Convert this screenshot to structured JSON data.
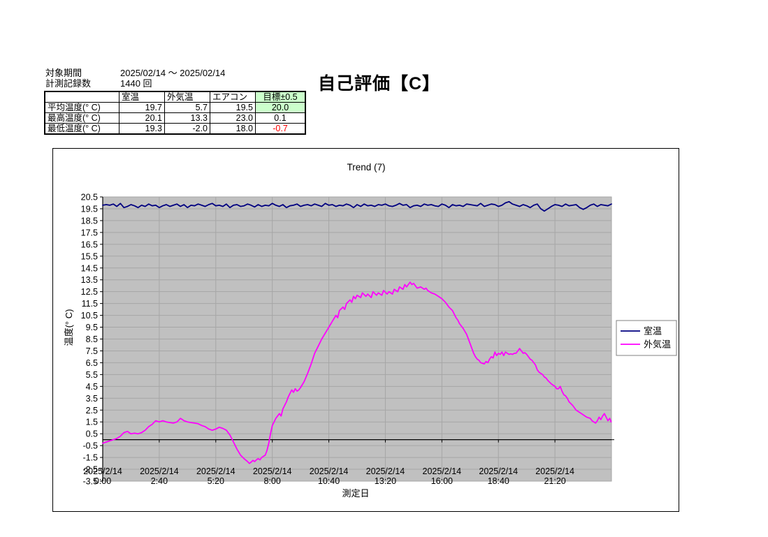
{
  "header": {
    "period_label": "対象期間",
    "period_value": "2025/02/14 ～ 2025/02/14",
    "count_label": "計測記録数",
    "count_value": "1440 回",
    "evaluation_title": "自己評価【C】"
  },
  "table": {
    "col_headers": [
      "",
      "室温",
      "外気温",
      "エアコン",
      "目標±0.5"
    ],
    "rows": [
      {
        "label": "平均温度(° C)",
        "values": [
          "19.7",
          "5.7",
          "19.5",
          "20.0"
        ]
      },
      {
        "label": "最高温度(° C)",
        "values": [
          "20.1",
          "13.3",
          "23.0",
          "0.1"
        ]
      },
      {
        "label": "最低温度(° C)",
        "values": [
          "19.3",
          "-2.0",
          "18.0",
          "-0.7"
        ]
      }
    ],
    "highlight_green": "#ccffcc",
    "negative_red": "#ff0000"
  },
  "chart_data": {
    "type": "line",
    "title": "Trend (7)",
    "xlabel": "測定日",
    "ylabel": "温度(° C)",
    "ylim": [
      -3.5,
      20.5
    ],
    "ytick_step": 1.0,
    "ytick_labels": [
      "20.5",
      "19.5",
      "18.5",
      "17.5",
      "16.5",
      "15.5",
      "14.5",
      "13.5",
      "12.5",
      "11.5",
      "10.5",
      "9.5",
      "8.5",
      "7.5",
      "6.5",
      "5.5",
      "4.5",
      "3.5",
      "2.5",
      "1.5",
      "0.5",
      "-0.5",
      "-1.5",
      "-2.5",
      "-3.5"
    ],
    "xlim_minutes": [
      0,
      1440
    ],
    "x_ticks": [
      {
        "minute": 0,
        "date": "2025/2/14",
        "time": "0:00"
      },
      {
        "minute": 160,
        "date": "2025/2/14",
        "time": "2:40"
      },
      {
        "minute": 320,
        "date": "2025/2/14",
        "time": "5:20"
      },
      {
        "minute": 480,
        "date": "2025/2/14",
        "time": "8:00"
      },
      {
        "minute": 640,
        "date": "2025/2/14",
        "time": "10:40"
      },
      {
        "minute": 800,
        "date": "2025/2/14",
        "time": "13:20"
      },
      {
        "minute": 960,
        "date": "2025/2/14",
        "time": "16:00"
      },
      {
        "minute": 1120,
        "date": "2025/2/14",
        "time": "18:40"
      },
      {
        "minute": 1280,
        "date": "2025/2/14",
        "time": "21:20"
      }
    ],
    "legend_position": "right",
    "plot_bg": "#c0c0c0",
    "grid_color": "#a6a6a6",
    "axis_color": "#000000",
    "series": [
      {
        "name": "外気温",
        "key": "outdoor-temp",
        "color": "#ff00ff",
        "points": [
          [
            0,
            -0.3
          ],
          [
            10,
            -0.2
          ],
          [
            20,
            -0.1
          ],
          [
            30,
            0.0
          ],
          [
            40,
            0.1
          ],
          [
            50,
            0.3
          ],
          [
            60,
            0.6
          ],
          [
            70,
            0.7
          ],
          [
            80,
            0.5
          ],
          [
            90,
            0.55
          ],
          [
            100,
            0.5
          ],
          [
            110,
            0.6
          ],
          [
            120,
            0.8
          ],
          [
            130,
            1.1
          ],
          [
            140,
            1.3
          ],
          [
            150,
            1.6
          ],
          [
            160,
            1.5
          ],
          [
            170,
            1.6
          ],
          [
            180,
            1.5
          ],
          [
            190,
            1.45
          ],
          [
            200,
            1.4
          ],
          [
            210,
            1.5
          ],
          [
            220,
            1.8
          ],
          [
            225,
            1.7
          ],
          [
            230,
            1.6
          ],
          [
            240,
            1.5
          ],
          [
            250,
            1.45
          ],
          [
            260,
            1.4
          ],
          [
            270,
            1.35
          ],
          [
            280,
            1.2
          ],
          [
            290,
            1.1
          ],
          [
            300,
            0.9
          ],
          [
            310,
            0.8
          ],
          [
            320,
            0.9
          ],
          [
            330,
            1.05
          ],
          [
            340,
            0.95
          ],
          [
            350,
            0.8
          ],
          [
            360,
            0.4
          ],
          [
            370,
            -0.2
          ],
          [
            380,
            -0.8
          ],
          [
            390,
            -1.3
          ],
          [
            400,
            -1.6
          ],
          [
            410,
            -1.85
          ],
          [
            415,
            -2.0
          ],
          [
            420,
            -1.9
          ],
          [
            425,
            -1.75
          ],
          [
            430,
            -1.85
          ],
          [
            435,
            -1.7
          ],
          [
            440,
            -1.6
          ],
          [
            445,
            -1.7
          ],
          [
            450,
            -1.5
          ],
          [
            455,
            -1.4
          ],
          [
            460,
            -1.3
          ],
          [
            465,
            -0.9
          ],
          [
            470,
            -0.3
          ],
          [
            475,
            0.5
          ],
          [
            480,
            1.2
          ],
          [
            490,
            1.8
          ],
          [
            500,
            2.2
          ],
          [
            505,
            2.0
          ],
          [
            510,
            2.6
          ],
          [
            520,
            3.2
          ],
          [
            525,
            3.6
          ],
          [
            530,
            3.9
          ],
          [
            535,
            4.2
          ],
          [
            540,
            4.0
          ],
          [
            545,
            4.3
          ],
          [
            550,
            4.1
          ],
          [
            555,
            4.2
          ],
          [
            560,
            4.4
          ],
          [
            570,
            4.9
          ],
          [
            580,
            5.6
          ],
          [
            590,
            6.4
          ],
          [
            600,
            7.3
          ],
          [
            610,
            7.9
          ],
          [
            620,
            8.5
          ],
          [
            630,
            9.0
          ],
          [
            640,
            9.5
          ],
          [
            650,
            10.0
          ],
          [
            660,
            10.5
          ],
          [
            665,
            10.3
          ],
          [
            670,
            10.9
          ],
          [
            680,
            11.2
          ],
          [
            685,
            11.0
          ],
          [
            690,
            11.5
          ],
          [
            700,
            11.8
          ],
          [
            705,
            11.6
          ],
          [
            710,
            12.1
          ],
          [
            715,
            11.9
          ],
          [
            720,
            12.2
          ],
          [
            730,
            12.0
          ],
          [
            735,
            12.4
          ],
          [
            745,
            12.1
          ],
          [
            750,
            12.3
          ],
          [
            760,
            12.0
          ],
          [
            765,
            12.5
          ],
          [
            775,
            12.2
          ],
          [
            780,
            12.4
          ],
          [
            790,
            12.2
          ],
          [
            795,
            12.6
          ],
          [
            805,
            12.3
          ],
          [
            810,
            12.5
          ],
          [
            820,
            12.3
          ],
          [
            825,
            12.7
          ],
          [
            835,
            12.5
          ],
          [
            840,
            12.9
          ],
          [
            850,
            12.7
          ],
          [
            855,
            13.1
          ],
          [
            860,
            12.9
          ],
          [
            870,
            13.3
          ],
          [
            875,
            13.1
          ],
          [
            880,
            13.2
          ],
          [
            885,
            13.0
          ],
          [
            890,
            12.8
          ],
          [
            900,
            12.9
          ],
          [
            910,
            12.7
          ],
          [
            915,
            12.8
          ],
          [
            920,
            12.6
          ],
          [
            930,
            12.4
          ],
          [
            940,
            12.3
          ],
          [
            945,
            12.2
          ],
          [
            950,
            12.1
          ],
          [
            960,
            11.9
          ],
          [
            970,
            11.6
          ],
          [
            975,
            11.4
          ],
          [
            980,
            11.2
          ],
          [
            990,
            10.9
          ],
          [
            1000,
            10.3
          ],
          [
            1005,
            10.1
          ],
          [
            1010,
            9.8
          ],
          [
            1020,
            9.4
          ],
          [
            1030,
            8.9
          ],
          [
            1035,
            8.5
          ],
          [
            1040,
            8.1
          ],
          [
            1050,
            7.3
          ],
          [
            1055,
            7.0
          ],
          [
            1060,
            6.8
          ],
          [
            1065,
            6.7
          ],
          [
            1070,
            6.5
          ],
          [
            1080,
            6.4
          ],
          [
            1085,
            6.6
          ],
          [
            1090,
            6.5
          ],
          [
            1095,
            6.8
          ],
          [
            1100,
            7.0
          ],
          [
            1105,
            6.9
          ],
          [
            1110,
            7.4
          ],
          [
            1115,
            7.1
          ],
          [
            1120,
            7.3
          ],
          [
            1125,
            7.2
          ],
          [
            1130,
            7.4
          ],
          [
            1135,
            7.1
          ],
          [
            1140,
            7.4
          ],
          [
            1145,
            7.3
          ],
          [
            1150,
            7.2
          ],
          [
            1155,
            7.25
          ],
          [
            1160,
            7.2
          ],
          [
            1165,
            7.3
          ],
          [
            1170,
            7.3
          ],
          [
            1175,
            7.5
          ],
          [
            1180,
            7.7
          ],
          [
            1185,
            7.5
          ],
          [
            1190,
            7.3
          ],
          [
            1195,
            7.35
          ],
          [
            1200,
            7.2
          ],
          [
            1205,
            7.0
          ],
          [
            1210,
            6.8
          ],
          [
            1215,
            6.7
          ],
          [
            1220,
            6.5
          ],
          [
            1225,
            6.3
          ],
          [
            1230,
            5.9
          ],
          [
            1235,
            5.7
          ],
          [
            1240,
            5.6
          ],
          [
            1245,
            5.5
          ],
          [
            1250,
            5.3
          ],
          [
            1255,
            5.2
          ],
          [
            1260,
            5.0
          ],
          [
            1270,
            4.7
          ],
          [
            1275,
            4.6
          ],
          [
            1280,
            4.5
          ],
          [
            1285,
            4.3
          ],
          [
            1290,
            4.3
          ],
          [
            1295,
            4.5
          ],
          [
            1300,
            4.1
          ],
          [
            1305,
            3.8
          ],
          [
            1310,
            3.7
          ],
          [
            1315,
            3.5
          ],
          [
            1320,
            3.2
          ],
          [
            1330,
            2.9
          ],
          [
            1335,
            2.7
          ],
          [
            1340,
            2.5
          ],
          [
            1350,
            2.3
          ],
          [
            1360,
            2.1
          ],
          [
            1365,
            2.0
          ],
          [
            1370,
            1.9
          ],
          [
            1380,
            1.8
          ],
          [
            1385,
            1.6
          ],
          [
            1390,
            1.5
          ],
          [
            1395,
            1.4
          ],
          [
            1400,
            1.6
          ],
          [
            1405,
            1.9
          ],
          [
            1410,
            1.7
          ],
          [
            1415,
            2.0
          ],
          [
            1420,
            2.2
          ],
          [
            1425,
            1.9
          ],
          [
            1430,
            1.6
          ],
          [
            1435,
            1.8
          ],
          [
            1439,
            1.5
          ]
        ]
      },
      {
        "name": "室温",
        "key": "room-temp",
        "color": "#000080",
        "t_start": 0,
        "t_step": 10,
        "values": [
          19.8,
          19.85,
          19.8,
          19.9,
          19.7,
          19.95,
          19.6,
          19.7,
          19.85,
          19.75,
          19.6,
          19.8,
          19.7,
          19.9,
          19.75,
          19.8,
          19.6,
          19.75,
          19.85,
          19.7,
          19.8,
          19.9,
          19.7,
          19.85,
          19.6,
          19.8,
          19.75,
          19.9,
          19.8,
          19.7,
          19.85,
          19.95,
          19.75,
          19.8,
          19.7,
          19.9,
          19.6,
          19.8,
          19.85,
          19.7,
          19.75,
          19.9,
          19.8,
          19.65,
          19.85,
          19.7,
          19.8,
          19.75,
          19.95,
          19.8,
          19.7,
          19.85,
          19.6,
          19.75,
          19.8,
          19.9,
          19.7,
          19.8,
          19.85,
          19.75,
          19.9,
          19.8,
          19.7,
          19.95,
          19.8,
          19.85,
          19.7,
          19.8,
          19.75,
          19.9,
          19.8,
          19.6,
          19.85,
          19.7,
          19.9,
          19.75,
          19.8,
          19.7,
          19.85,
          19.8,
          19.9,
          19.75,
          19.7,
          19.8,
          19.95,
          19.8,
          19.85,
          19.6,
          19.75,
          19.8,
          19.7,
          19.9,
          19.8,
          19.85,
          19.75,
          19.7,
          19.9,
          19.8,
          19.6,
          19.85,
          19.75,
          19.8,
          19.7,
          19.9,
          19.85,
          19.8,
          19.75,
          19.95,
          19.7,
          19.8,
          19.9,
          19.85,
          19.7,
          19.8,
          20.0,
          20.1,
          19.9,
          19.8,
          19.7,
          19.85,
          19.75,
          19.6,
          19.8,
          19.9,
          19.5,
          19.3,
          19.5,
          19.7,
          19.85,
          19.8,
          19.7,
          19.9,
          19.75,
          19.8,
          19.85,
          19.6,
          19.45,
          19.6,
          19.8,
          19.9,
          19.7,
          19.85,
          19.8,
          19.75,
          19.9
        ]
      }
    ],
    "legend": [
      "室温",
      "外気温"
    ]
  }
}
